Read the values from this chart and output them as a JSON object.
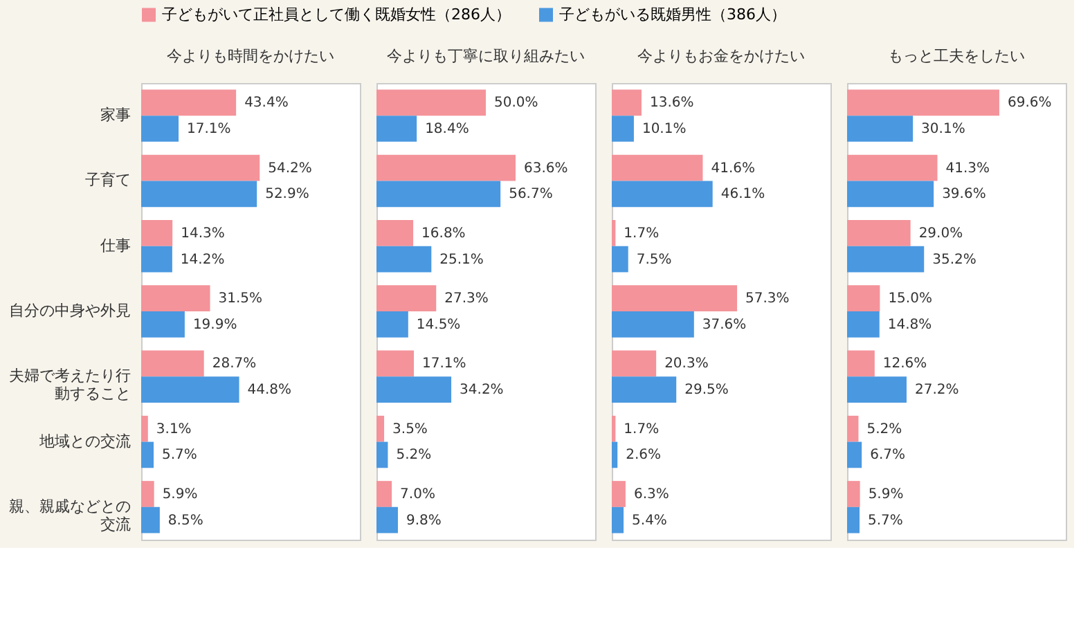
{
  "chart_data": [
    {
      "type": "bar",
      "orientation": "horizontal",
      "title": "今よりも時間をかけたい",
      "categories": [
        "家事",
        "子育て",
        "仕事",
        "自分の中身や外見",
        "夫婦で考えたり行動すること",
        "地域との交流",
        "親、親戚などとの交流"
      ],
      "xlim": [
        0,
        100
      ],
      "tick_labels": "y",
      "legend": "top",
      "series": [
        {
          "name": "子どもがいて正社員として働く既婚女性（286人）",
          "color": "#f4939a",
          "values": [
            43.4,
            54.2,
            14.3,
            31.5,
            28.7,
            3.1,
            5.9
          ],
          "value_labels": [
            "43.4%",
            "54.2%",
            "14.3%",
            "31.5%",
            "28.7%",
            "3.1%",
            "5.9%"
          ]
        },
        {
          "name": "子どもがいる既婚男性（386人）",
          "color": "#4a98e0",
          "values": [
            17.1,
            52.9,
            14.2,
            19.9,
            44.8,
            5.7,
            8.5
          ],
          "value_labels": [
            "17.1%",
            "52.9%",
            "14.2%",
            "19.9%",
            "44.8%",
            "5.7%",
            "8.5%"
          ]
        }
      ]
    },
    {
      "type": "bar",
      "orientation": "horizontal",
      "title": "今よりも丁寧に取り組みたい",
      "categories": [
        "家事",
        "子育て",
        "仕事",
        "自分の中身や外見",
        "夫婦で考えたり行動すること",
        "地域との交流",
        "親、親戚などとの交流"
      ],
      "xlim": [
        0,
        100
      ],
      "tick_labels": false,
      "series": [
        {
          "color": "#f4939a",
          "values": [
            50.0,
            63.6,
            16.8,
            27.3,
            17.1,
            3.5,
            7.0
          ],
          "value_labels": [
            "50.0%",
            "63.6%",
            "16.8%",
            "27.3%",
            "17.1%",
            "3.5%",
            "7.0%"
          ]
        },
        {
          "color": "#4a98e0",
          "values": [
            18.4,
            56.7,
            25.1,
            14.5,
            34.2,
            5.2,
            9.8
          ],
          "value_labels": [
            "18.4%",
            "56.7%",
            "25.1%",
            "14.5%",
            "34.2%",
            "5.2%",
            "9.8%"
          ]
        }
      ]
    },
    {
      "type": "bar",
      "orientation": "horizontal",
      "title": "今よりもお金をかけたい",
      "categories": [
        "家事",
        "子育て",
        "仕事",
        "自分の中身や外見",
        "夫婦で考えたり行動すること",
        "地域との交流",
        "親、親戚などとの交流"
      ],
      "xlim": [
        0,
        100
      ],
      "tick_labels": false,
      "series": [
        {
          "color": "#f4939a",
          "values": [
            13.6,
            41.6,
            1.7,
            57.3,
            20.3,
            1.7,
            6.3
          ],
          "value_labels": [
            "13.6%",
            "41.6%",
            "1.7%",
            "57.3%",
            "20.3%",
            "1.7%",
            "6.3%"
          ]
        },
        {
          "color": "#4a98e0",
          "values": [
            10.1,
            46.1,
            7.5,
            37.6,
            29.5,
            2.6,
            5.4
          ],
          "value_labels": [
            "10.1%",
            "46.1%",
            "7.5%",
            "37.6%",
            "29.5%",
            "2.6%",
            "5.4%"
          ]
        }
      ]
    },
    {
      "type": "bar",
      "orientation": "horizontal",
      "title": "もっと工夫をしたい",
      "categories": [
        "家事",
        "子育て",
        "仕事",
        "自分の中身や外見",
        "夫婦で考えたり行動すること",
        "地域との交流",
        "親、親戚などとの交流"
      ],
      "xlim": [
        0,
        100
      ],
      "tick_labels": false,
      "series": [
        {
          "color": "#f4939a",
          "values": [
            69.6,
            41.3,
            29.0,
            15.0,
            12.6,
            5.2,
            5.9
          ],
          "value_labels": [
            "69.6%",
            "41.3%",
            "29.0%",
            "15.0%",
            "12.6%",
            "5.2%",
            "5.9%"
          ]
        },
        {
          "color": "#4a98e0",
          "values": [
            30.1,
            39.6,
            35.2,
            14.8,
            27.2,
            6.7,
            5.7
          ],
          "value_labels": [
            "30.1%",
            "39.6%",
            "35.2%",
            "14.8%",
            "27.2%",
            "6.7%",
            "5.7%"
          ]
        }
      ]
    }
  ]
}
